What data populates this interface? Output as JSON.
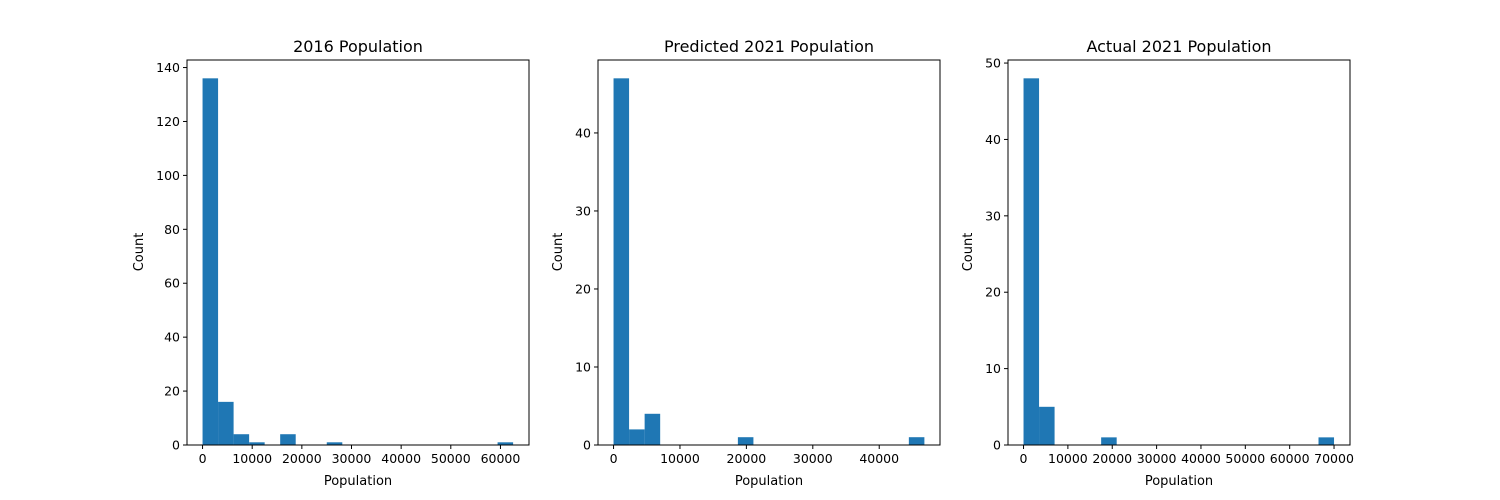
{
  "chart_data": [
    {
      "type": "bar",
      "title": "2016 Population",
      "xlabel": "Population",
      "ylabel": "Count",
      "xlim": [
        -3131,
        65750
      ],
      "ylim": [
        0,
        142.8
      ],
      "xticks": [
        0,
        10000,
        20000,
        30000,
        40000,
        50000,
        60000
      ],
      "yticks": [
        0,
        20,
        40,
        60,
        80,
        100,
        120,
        140
      ],
      "bins": [
        {
          "x0": 0,
          "x1": 3127,
          "count": 136
        },
        {
          "x0": 3127,
          "x1": 6255,
          "count": 16
        },
        {
          "x0": 6255,
          "x1": 9382,
          "count": 4
        },
        {
          "x0": 9382,
          "x1": 12510,
          "count": 1
        },
        {
          "x0": 12510,
          "x1": 15637,
          "count": 0
        },
        {
          "x0": 15637,
          "x1": 18764,
          "count": 4
        },
        {
          "x0": 18764,
          "x1": 21892,
          "count": 0
        },
        {
          "x0": 21892,
          "x1": 25019,
          "count": 0
        },
        {
          "x0": 25019,
          "x1": 28147,
          "count": 1
        },
        {
          "x0": 28147,
          "x1": 31274,
          "count": 0
        },
        {
          "x0": 31274,
          "x1": 34401,
          "count": 0
        },
        {
          "x0": 34401,
          "x1": 37529,
          "count": 0
        },
        {
          "x0": 37529,
          "x1": 40656,
          "count": 0
        },
        {
          "x0": 40656,
          "x1": 43784,
          "count": 0
        },
        {
          "x0": 43784,
          "x1": 46911,
          "count": 0
        },
        {
          "x0": 46911,
          "x1": 50038,
          "count": 0
        },
        {
          "x0": 50038,
          "x1": 53166,
          "count": 0
        },
        {
          "x0": 53166,
          "x1": 56293,
          "count": 0
        },
        {
          "x0": 56293,
          "x1": 59421,
          "count": 0
        },
        {
          "x0": 59421,
          "x1": 62548,
          "count": 1
        }
      ]
    },
    {
      "type": "bar",
      "title": "Predicted 2021 Population",
      "xlabel": "Population",
      "ylabel": "Count",
      "xlim": [
        -2340,
        49150
      ],
      "ylim": [
        0,
        49.35
      ],
      "xticks": [
        0,
        10000,
        20000,
        30000,
        40000
      ],
      "yticks": [
        0,
        10,
        20,
        30,
        40
      ],
      "bins": [
        {
          "x0": 0,
          "x1": 2340,
          "count": 47
        },
        {
          "x0": 2340,
          "x1": 4680,
          "count": 2
        },
        {
          "x0": 4680,
          "x1": 7020,
          "count": 4
        },
        {
          "x0": 7020,
          "x1": 9360,
          "count": 0
        },
        {
          "x0": 9360,
          "x1": 11700,
          "count": 0
        },
        {
          "x0": 11700,
          "x1": 14040,
          "count": 0
        },
        {
          "x0": 14040,
          "x1": 16380,
          "count": 0
        },
        {
          "x0": 16380,
          "x1": 18720,
          "count": 0
        },
        {
          "x0": 18720,
          "x1": 21060,
          "count": 1
        },
        {
          "x0": 21060,
          "x1": 23400,
          "count": 0
        },
        {
          "x0": 23400,
          "x1": 25740,
          "count": 0
        },
        {
          "x0": 25740,
          "x1": 28080,
          "count": 0
        },
        {
          "x0": 28080,
          "x1": 30420,
          "count": 0
        },
        {
          "x0": 30420,
          "x1": 32760,
          "count": 0
        },
        {
          "x0": 32760,
          "x1": 35100,
          "count": 0
        },
        {
          "x0": 35100,
          "x1": 37440,
          "count": 0
        },
        {
          "x0": 37440,
          "x1": 39780,
          "count": 0
        },
        {
          "x0": 39780,
          "x1": 42120,
          "count": 0
        },
        {
          "x0": 42120,
          "x1": 44460,
          "count": 0
        },
        {
          "x0": 44460,
          "x1": 46800,
          "count": 1
        }
      ]
    },
    {
      "type": "bar",
      "title": "Actual 2021 Population",
      "xlabel": "Population",
      "ylabel": "Count",
      "xlim": [
        -3500,
        73600
      ],
      "ylim": [
        0,
        50.4
      ],
      "xticks": [
        0,
        10000,
        20000,
        30000,
        40000,
        50000,
        60000,
        70000
      ],
      "yticks": [
        0,
        10,
        20,
        30,
        40,
        50
      ],
      "bins": [
        {
          "x0": 0,
          "x1": 3500,
          "count": 48
        },
        {
          "x0": 3500,
          "x1": 7000,
          "count": 5
        },
        {
          "x0": 7000,
          "x1": 10500,
          "count": 0
        },
        {
          "x0": 10500,
          "x1": 14000,
          "count": 0
        },
        {
          "x0": 14000,
          "x1": 17500,
          "count": 0
        },
        {
          "x0": 17500,
          "x1": 21000,
          "count": 1
        },
        {
          "x0": 21000,
          "x1": 24500,
          "count": 0
        },
        {
          "x0": 24500,
          "x1": 28000,
          "count": 0
        },
        {
          "x0": 28000,
          "x1": 31500,
          "count": 0
        },
        {
          "x0": 31500,
          "x1": 35000,
          "count": 0
        },
        {
          "x0": 35000,
          "x1": 38500,
          "count": 0
        },
        {
          "x0": 38500,
          "x1": 42000,
          "count": 0
        },
        {
          "x0": 42000,
          "x1": 45500,
          "count": 0
        },
        {
          "x0": 45500,
          "x1": 49000,
          "count": 0
        },
        {
          "x0": 49000,
          "x1": 52500,
          "count": 0
        },
        {
          "x0": 52500,
          "x1": 56000,
          "count": 0
        },
        {
          "x0": 56000,
          "x1": 59500,
          "count": 0
        },
        {
          "x0": 59500,
          "x1": 63000,
          "count": 0
        },
        {
          "x0": 63000,
          "x1": 66500,
          "count": 0
        },
        {
          "x0": 66500,
          "x1": 70000,
          "count": 1
        }
      ]
    }
  ],
  "style": {
    "bar_color": "#1f77b4",
    "axis_color": "#000000"
  }
}
